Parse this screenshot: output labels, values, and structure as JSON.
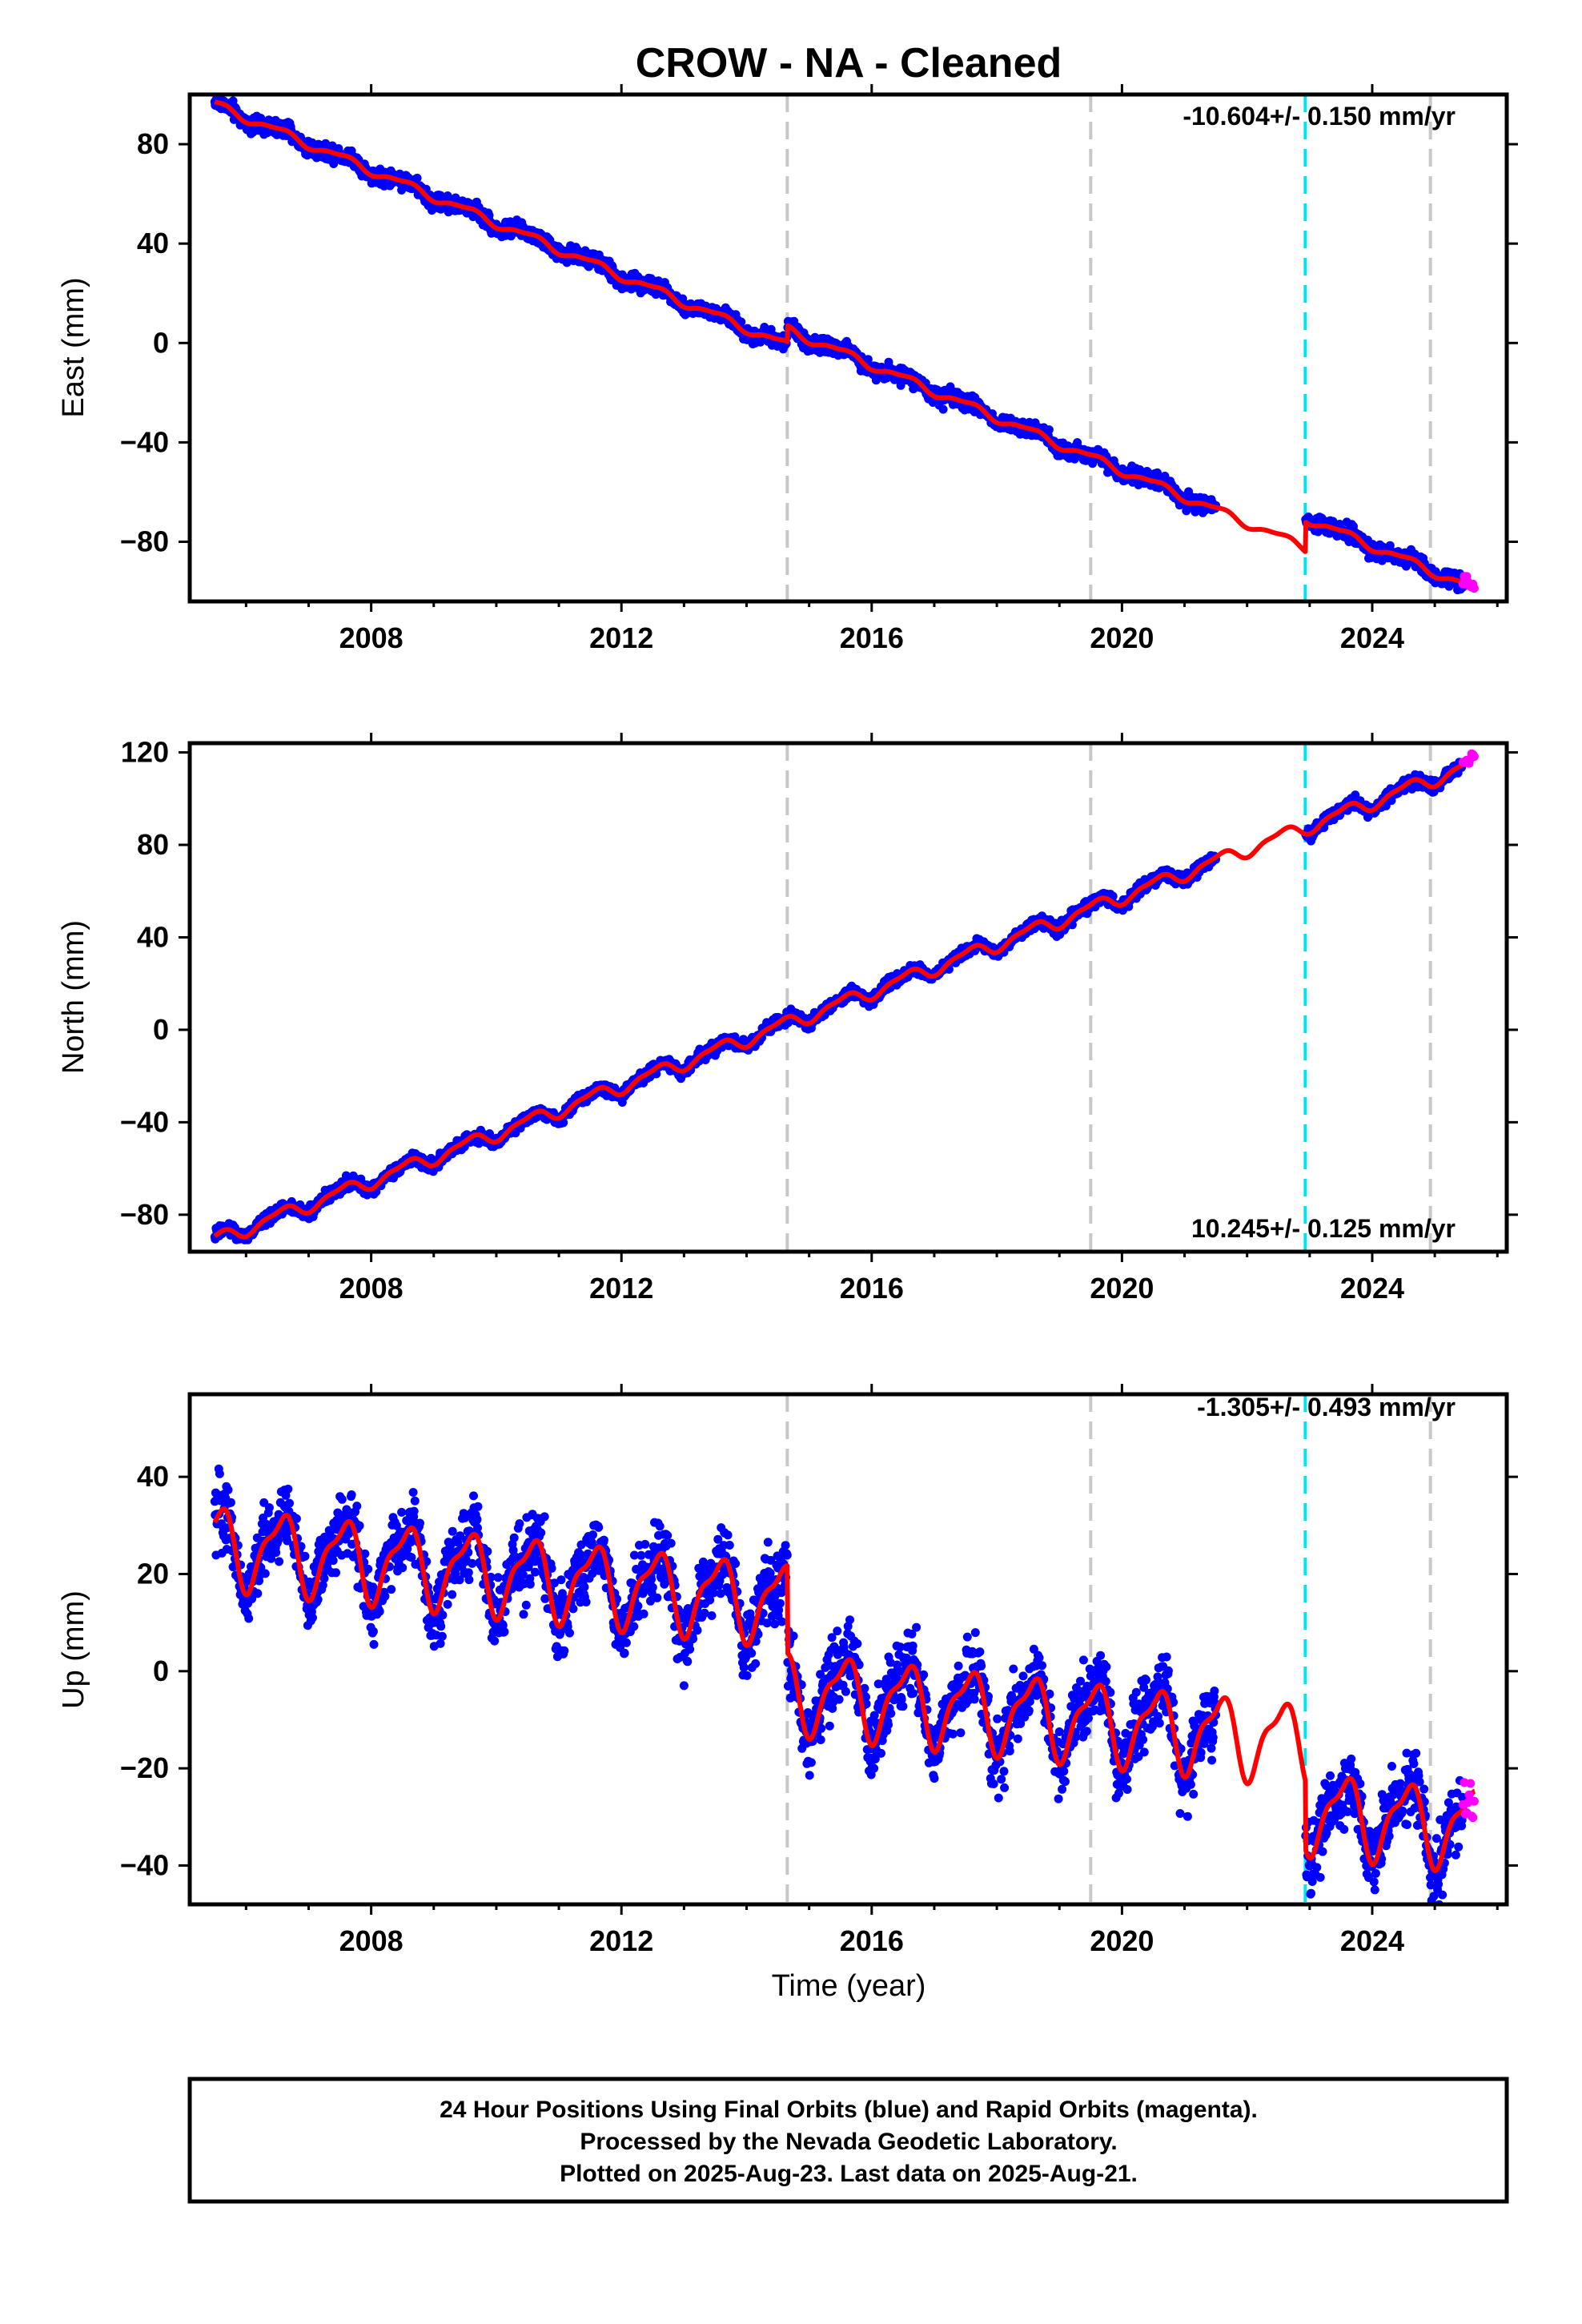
{
  "title": "CROW  - NA - Cleaned",
  "colors": {
    "final": "#0000ff",
    "rapid": "#ff00ff",
    "model": "#ff0000",
    "equipment_change": "#c8c8c8",
    "earthquake": "#00e5ee",
    "frame": "#000000"
  },
  "chart_data": [
    {
      "type": "scatter",
      "component": "east",
      "ylabel": "East (mm)",
      "xlabel": "",
      "xlim": [
        2005.1,
        2026.15
      ],
      "ylim": [
        -104,
        100
      ],
      "xticks": [
        2008,
        2012,
        2016,
        2020,
        2024
      ],
      "yticks": [
        80,
        40,
        0,
        -40,
        -80
      ],
      "tick_labels": [
        "2008",
        "2012",
        "2016",
        "2020",
        "2024"
      ],
      "ytick_labels": [
        "80",
        "40",
        "0",
        "−40",
        "−80"
      ],
      "rate_text": "-10.604+/- 0.150 mm/yr",
      "rate_position": "top-right",
      "velocity_mm_yr": -10.604,
      "trend_anchor": [
        2005.5,
        96
      ],
      "annual_amp_mm": 1.6,
      "noise_mm": 2.2,
      "offsets": [
        [
          2014.65,
          6.5
        ],
        [
          2022.93,
          12
        ]
      ],
      "final_start": 2005.5,
      "final_end": 2025.45,
      "data_gap": [
        2021.5,
        2022.93
      ],
      "rapid_range": [
        2025.45,
        2025.64
      ],
      "equipment_changes": [
        2014.65,
        2019.5,
        2024.93
      ],
      "earthquakes": [
        2022.93
      ]
    },
    {
      "type": "scatter",
      "component": "north",
      "ylabel": "North (mm)",
      "xlabel": "",
      "xlim": [
        2005.1,
        2026.15
      ],
      "ylim": [
        -96,
        124
      ],
      "xticks": [
        2008,
        2012,
        2016,
        2020,
        2024
      ],
      "yticks": [
        120,
        80,
        40,
        0,
        -40,
        -80
      ],
      "tick_labels": [
        "2008",
        "2012",
        "2016",
        "2020",
        "2024"
      ],
      "ytick_labels": [
        "120",
        "80",
        "40",
        "0",
        "−40",
        "−80"
      ],
      "rate_text": "10.245+/- 0.125 mm/yr",
      "rate_position": "bottom-right",
      "velocity_mm_yr": 10.245,
      "trend_anchor": [
        2005.5,
        -91
      ],
      "annual_amp_mm": 2.8,
      "noise_mm": 1.8,
      "offsets": [],
      "final_start": 2005.5,
      "final_end": 2025.45,
      "data_gap": [
        2021.5,
        2022.93
      ],
      "rapid_range": [
        2025.45,
        2025.64
      ],
      "equipment_changes": [
        2014.65,
        2019.5,
        2024.93
      ],
      "earthquakes": [
        2022.93
      ]
    },
    {
      "type": "scatter",
      "component": "up",
      "ylabel": "Up (mm)",
      "xlabel": "Time (year)",
      "xlim": [
        2005.1,
        2026.15
      ],
      "ylim": [
        -48,
        57
      ],
      "xticks": [
        2008,
        2012,
        2016,
        2020,
        2024
      ],
      "yticks": [
        40,
        20,
        0,
        -20,
        -40
      ],
      "tick_labels": [
        "2008",
        "2012",
        "2016",
        "2020",
        "2024"
      ],
      "ytick_labels": [
        "40",
        "20",
        "0",
        "−20",
        "−40"
      ],
      "rate_text": "-1.305+/- 0.493 mm/yr",
      "rate_position": "top-right",
      "velocity_mm_yr": -1.305,
      "trend_anchor": [
        2005.5,
        26
      ],
      "annual_amp_mm": 7.5,
      "noise_mm": 5.0,
      "offsets": [
        [
          2014.65,
          -18
        ],
        [
          2022.93,
          -14
        ]
      ],
      "final_start": 2005.5,
      "final_end": 2025.45,
      "data_gap": [
        2021.5,
        2022.93
      ],
      "rapid_range": [
        2025.45,
        2025.64
      ],
      "equipment_changes": [
        2014.65,
        2019.5,
        2024.93
      ],
      "earthquakes": [
        2022.93
      ]
    }
  ],
  "footer": {
    "line1": "24 Hour Positions Using Final Orbits (blue) and Rapid Orbits (magenta).",
    "line2": "Processed by the Nevada Geodetic Laboratory.",
    "line3": "Plotted on 2025-Aug-23. Last data on 2025-Aug-21."
  }
}
